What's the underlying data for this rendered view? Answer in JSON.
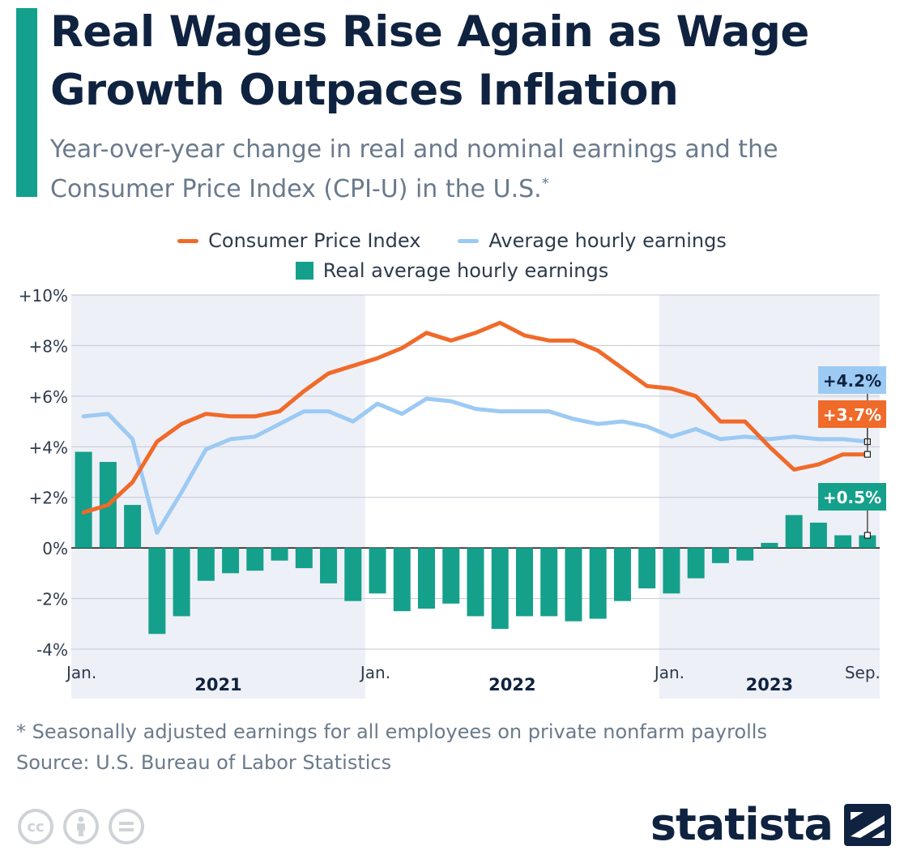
{
  "header": {
    "title": "Real Wages Rise Again as Wage Growth Outpaces Inflation",
    "subtitle": "Year-over-year change in real and nominal earnings and the Consumer Price Index (CPI-U) in the U.S.",
    "subtitle_mark": "*"
  },
  "legend": {
    "cpi": "Consumer Price Index",
    "ahe": "Average hourly earnings",
    "real": "Real average hourly earnings"
  },
  "colors": {
    "cpi": "#f06a2a",
    "ahe": "#9ccaf3",
    "real": "#15a08b",
    "title": "#0f2340",
    "accent": "#13a08c"
  },
  "chart_data": {
    "type": "bar+line",
    "title": "Real Wages Rise Again as Wage Growth Outpaces Inflation",
    "x": [
      "2021-01",
      "2021-02",
      "2021-03",
      "2021-04",
      "2021-05",
      "2021-06",
      "2021-07",
      "2021-08",
      "2021-09",
      "2021-10",
      "2021-11",
      "2021-12",
      "2022-01",
      "2022-02",
      "2022-03",
      "2022-04",
      "2022-05",
      "2022-06",
      "2022-07",
      "2022-08",
      "2022-09",
      "2022-10",
      "2022-11",
      "2022-12",
      "2023-01",
      "2023-02",
      "2023-03",
      "2023-04",
      "2023-05",
      "2023-06",
      "2023-07",
      "2023-08",
      "2023-09"
    ],
    "series": [
      {
        "name": "Consumer Price Index",
        "type": "line",
        "values": [
          1.4,
          1.7,
          2.6,
          4.2,
          4.9,
          5.3,
          5.2,
          5.2,
          5.4,
          6.2,
          6.9,
          7.2,
          7.5,
          7.9,
          8.5,
          8.2,
          8.5,
          8.9,
          8.4,
          8.2,
          8.2,
          7.8,
          7.1,
          6.4,
          6.3,
          6.0,
          5.0,
          5.0,
          4.0,
          3.1,
          3.3,
          3.7,
          3.7
        ]
      },
      {
        "name": "Average hourly earnings",
        "type": "line",
        "values": [
          5.2,
          5.3,
          4.3,
          0.6,
          2.2,
          3.9,
          4.3,
          4.4,
          4.9,
          5.4,
          5.4,
          5.0,
          5.7,
          5.3,
          5.9,
          5.8,
          5.5,
          5.4,
          5.4,
          5.4,
          5.1,
          4.9,
          5.0,
          4.8,
          4.4,
          4.7,
          4.3,
          4.4,
          4.3,
          4.4,
          4.3,
          4.3,
          4.2
        ]
      },
      {
        "name": "Real average hourly earnings",
        "type": "bar",
        "values": [
          3.8,
          3.4,
          1.7,
          -3.4,
          -2.7,
          -1.3,
          -1.0,
          -0.9,
          -0.5,
          -0.8,
          -1.4,
          -2.1,
          -1.8,
          -2.5,
          -2.4,
          -2.2,
          -2.7,
          -3.2,
          -2.7,
          -2.7,
          -2.9,
          -2.8,
          -2.1,
          -1.6,
          -1.8,
          -1.2,
          -0.6,
          -0.5,
          0.2,
          1.3,
          1.0,
          0.5,
          0.5
        ]
      }
    ],
    "y_ticks": [
      "+10%",
      "+8%",
      "+6%",
      "+4%",
      "+2%",
      "0%",
      "-2%",
      "-4%"
    ],
    "ylim": [
      -4,
      10
    ],
    "x_ticks": [
      "Jan.",
      "Jan.",
      "Jan.",
      "Sep."
    ],
    "year_labels": [
      "2021",
      "2022",
      "2023"
    ],
    "end_labels": {
      "ahe": "+4.2%",
      "cpi": "+3.7%",
      "real": "+0.5%"
    },
    "grid": true,
    "legend_position": "top"
  },
  "footer": {
    "note": "* Seasonally adjusted earnings for all employees on private nonfarm payrolls",
    "source": "Source: U.S. Bureau of Labor Statistics",
    "brand": "statista"
  }
}
